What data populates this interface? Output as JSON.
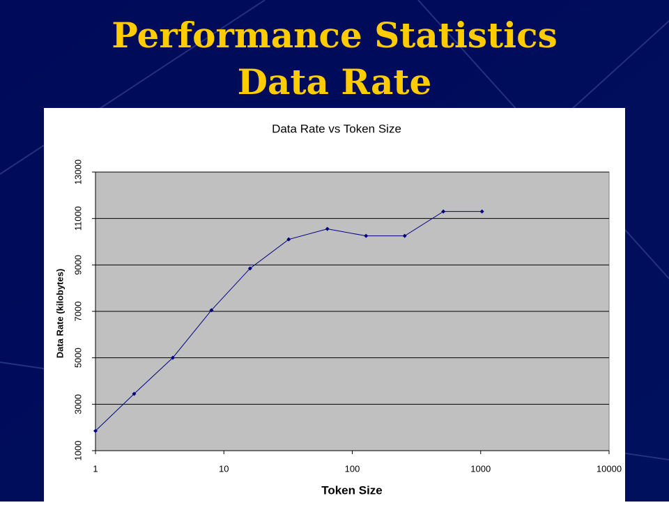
{
  "slide": {
    "title": [
      "Performance Statistics",
      "Data Rate"
    ]
  },
  "chart_data": {
    "type": "line",
    "title": "Data Rate vs Token Size",
    "x_label": "Token Size",
    "y_label": "Data Rate (kilobytes)",
    "x": [
      1,
      2,
      4,
      8,
      16,
      32,
      64,
      128,
      256,
      512,
      1024
    ],
    "series": [
      {
        "name": "Data Rate",
        "color": "#000080",
        "values": [
          1850,
          3450,
          5000,
          7050,
          8850,
          10100,
          10550,
          10250,
          10250,
          11300,
          11300
        ]
      }
    ],
    "xscale": "log",
    "xlim": [
      1,
      10000
    ],
    "xticks": [
      1,
      10,
      100,
      1000,
      10000
    ],
    "ylim": [
      1000,
      13000
    ],
    "yticks": [
      1000,
      3000,
      5000,
      7000,
      9000,
      11000,
      13000
    ],
    "grid": true,
    "plot_background": "#c0c0c0"
  }
}
